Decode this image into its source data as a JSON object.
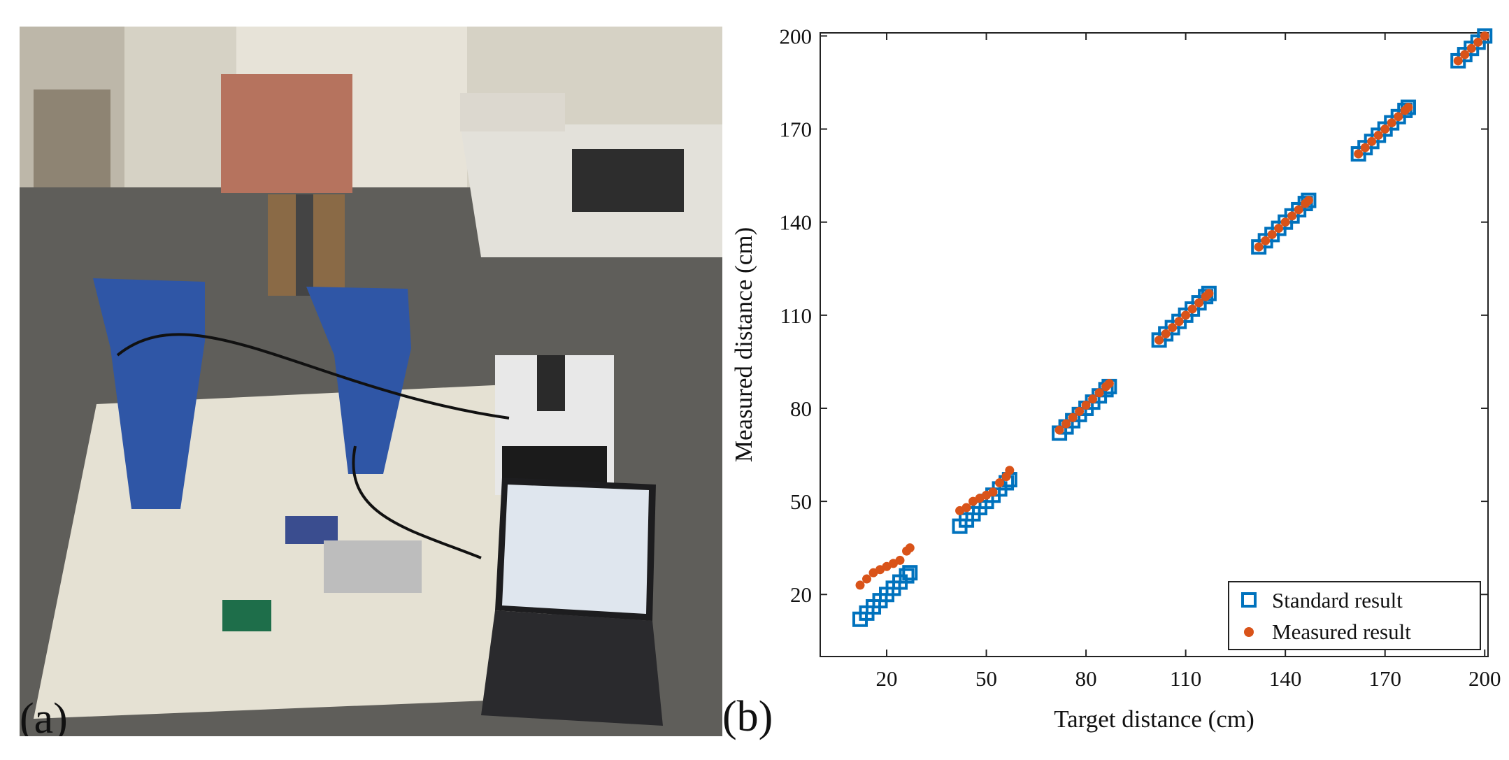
{
  "panel_a": {
    "label": "(a)",
    "icons": [
      "target-board-icon",
      "horn-antenna-icon",
      "power-supply-icon",
      "laptop-icon",
      "radar-board-icon"
    ]
  },
  "panel_b": {
    "label": "(b)"
  },
  "colors": {
    "standard": "#0072BD",
    "measured": "#D95319",
    "axis": "#222222"
  },
  "chart_data": {
    "type": "scatter",
    "title": "",
    "xlabel": "Target distance (cm)",
    "ylabel": "Measured distance (cm)",
    "xlim": [
      0,
      201
    ],
    "ylim": [
      0,
      201
    ],
    "xticks": [
      20,
      50,
      80,
      110,
      140,
      170,
      200
    ],
    "yticks": [
      20,
      50,
      80,
      110,
      140,
      170,
      200
    ],
    "grid": false,
    "legend_position": "bottom-right",
    "series": [
      {
        "name": "Standard result",
        "marker": "square",
        "x": [
          12,
          14,
          16,
          18,
          20,
          22,
          24,
          26,
          27,
          42,
          44,
          46,
          48,
          50,
          52,
          54,
          56,
          57,
          72,
          74,
          76,
          78,
          80,
          82,
          84,
          86,
          87,
          102,
          104,
          106,
          108,
          110,
          112,
          114,
          116,
          117,
          132,
          134,
          136,
          138,
          140,
          142,
          144,
          146,
          147,
          162,
          164,
          166,
          168,
          170,
          172,
          174,
          176,
          177,
          192,
          194,
          196,
          198,
          200
        ],
        "y": [
          12,
          14,
          16,
          18,
          20,
          22,
          24,
          26,
          27,
          42,
          44,
          46,
          48,
          50,
          52,
          54,
          56,
          57,
          72,
          74,
          76,
          78,
          80,
          82,
          84,
          86,
          87,
          102,
          104,
          106,
          108,
          110,
          112,
          114,
          116,
          117,
          132,
          134,
          136,
          138,
          140,
          142,
          144,
          146,
          147,
          162,
          164,
          166,
          168,
          170,
          172,
          174,
          176,
          177,
          192,
          194,
          196,
          198,
          200
        ]
      },
      {
        "name": "Measured result",
        "marker": "dot",
        "x": [
          12,
          14,
          16,
          18,
          20,
          22,
          24,
          26,
          27,
          42,
          44,
          46,
          48,
          50,
          52,
          54,
          56,
          57,
          72,
          74,
          76,
          78,
          80,
          82,
          84,
          86,
          87,
          102,
          104,
          106,
          108,
          110,
          112,
          114,
          116,
          117,
          132,
          134,
          136,
          138,
          140,
          142,
          144,
          146,
          147,
          162,
          164,
          166,
          168,
          170,
          172,
          174,
          176,
          177,
          192,
          194,
          196,
          198,
          200
        ],
        "y": [
          23,
          25,
          27,
          28,
          29,
          30,
          31,
          34,
          35,
          47,
          48,
          50,
          51,
          52,
          53,
          56,
          58,
          60,
          73,
          75,
          77,
          79,
          81,
          83,
          85,
          87,
          88,
          102,
          104,
          106,
          108,
          110,
          112,
          114,
          116,
          117,
          132,
          134,
          136,
          138,
          140,
          142,
          144,
          146,
          147,
          162,
          164,
          166,
          168,
          170,
          172,
          174,
          176,
          177,
          192,
          194,
          196,
          198,
          200
        ]
      }
    ]
  }
}
